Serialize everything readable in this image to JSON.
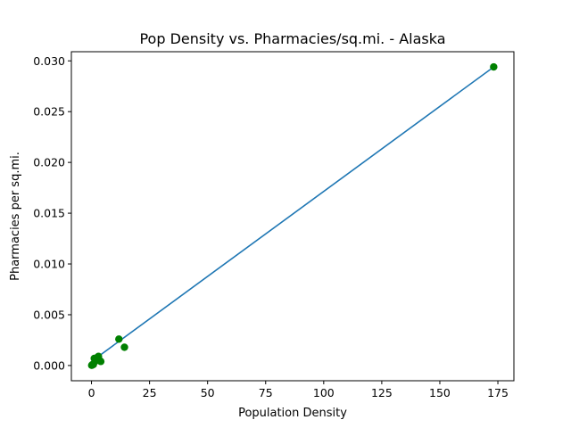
{
  "chart_data": {
    "type": "scatter",
    "title": "Pop Density vs. Pharmacies/sq.mi. - Alaska",
    "xlabel": "Population Density",
    "ylabel": "Pharmacies per sq.mi.",
    "xlim": [
      -8.66,
      181.9
    ],
    "ylim": [
      -0.0015,
      0.0309
    ],
    "xticks": [
      0,
      25,
      50,
      75,
      100,
      125,
      150,
      175
    ],
    "xtick_labels": [
      "0",
      "25",
      "50",
      "75",
      "100",
      "125",
      "150",
      "175"
    ],
    "yticks": [
      0.0,
      0.005,
      0.01,
      0.015,
      0.02,
      0.025,
      0.03
    ],
    "ytick_labels": [
      "0.000",
      "0.005",
      "0.010",
      "0.015",
      "0.020",
      "0.025",
      "0.030"
    ],
    "grid": false,
    "points": {
      "color": "#008000",
      "x": [
        0.1,
        0.3,
        0.5,
        0.8,
        1.2,
        1.5,
        2.0,
        2.5,
        3.0,
        3.5,
        4.0,
        11.8,
        14.2,
        173.2
      ],
      "y": [
        2e-05,
        5e-05,
        0.0001,
        0.0001,
        0.0007,
        0.0004,
        0.0006,
        0.0008,
        0.0009,
        0.0005,
        0.0004,
        0.0026,
        0.0018,
        0.0294
      ]
    },
    "fit_line": {
      "color": "#1f77b4",
      "x": [
        0.0,
        173.2
      ],
      "y": [
        0.0004,
        0.0294
      ]
    }
  }
}
